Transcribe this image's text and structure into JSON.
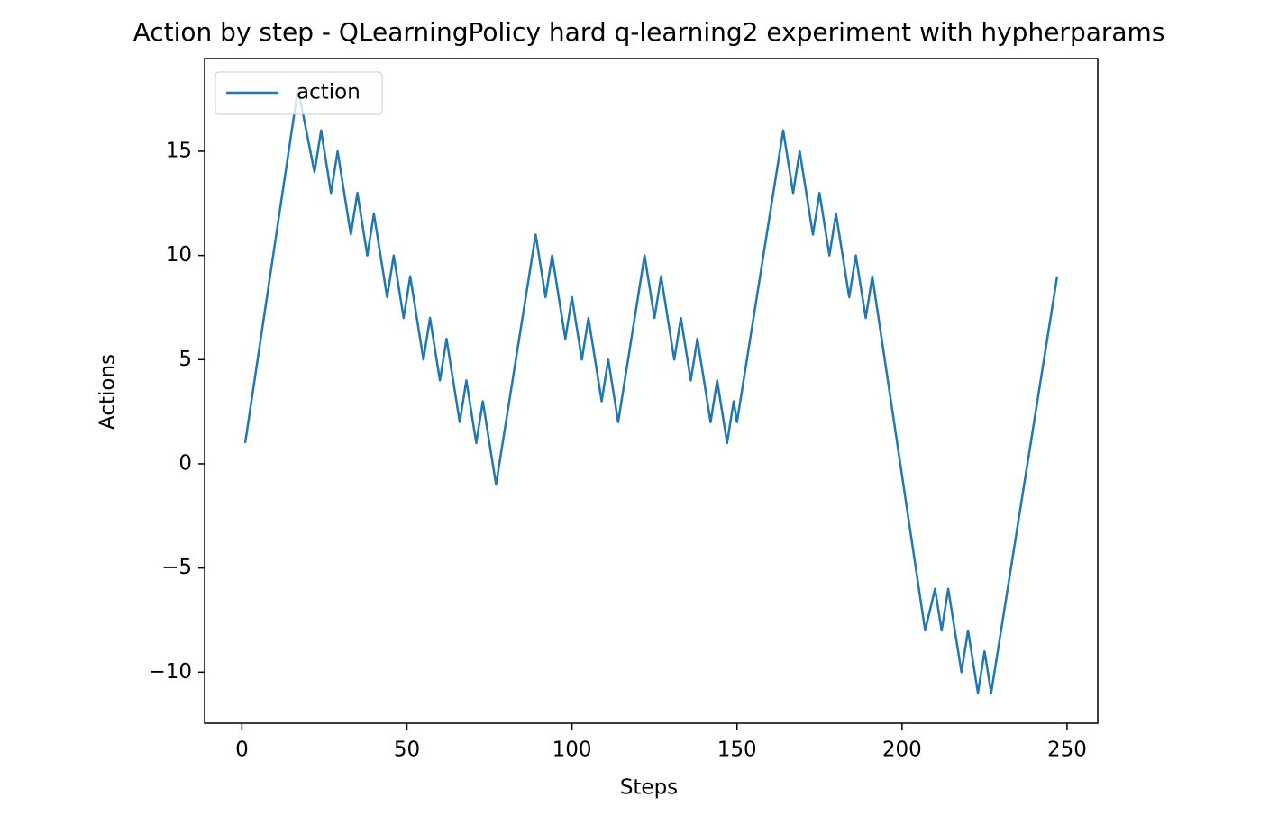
{
  "chart_data": {
    "type": "line",
    "title": "Action by step - QLearningPolicy hard q-learning2 experiment with hypherparams",
    "x_label": "Steps",
    "y_label": "Actions",
    "x": [
      1,
      17,
      22,
      24,
      27,
      29,
      33,
      35,
      38,
      40,
      44,
      46,
      49,
      51,
      55,
      57,
      60,
      62,
      66,
      68,
      71,
      73,
      77,
      89,
      92,
      94,
      98,
      100,
      103,
      105,
      109,
      111,
      114,
      122,
      125,
      127,
      131,
      133,
      136,
      138,
      142,
      144,
      147,
      149,
      150,
      164,
      167,
      169,
      173,
      175,
      178,
      180,
      184,
      186,
      189,
      191,
      207,
      210,
      212,
      214,
      218,
      220,
      223,
      225,
      227,
      247
    ],
    "series": [
      {
        "name": "action",
        "color": "#1f77b4",
        "values": [
          1,
          18,
          14,
          16,
          13,
          15,
          11,
          13,
          10,
          12,
          8,
          10,
          7,
          9,
          5,
          7,
          4,
          6,
          2,
          4,
          1,
          3,
          -1,
          11,
          8,
          10,
          6,
          8,
          5,
          7,
          3,
          5,
          2,
          10,
          7,
          9,
          5,
          7,
          4,
          6,
          2,
          4,
          1,
          3,
          2,
          16,
          13,
          15,
          11,
          13,
          10,
          12,
          8,
          10,
          7,
          9,
          -8,
          -6,
          -8,
          -6,
          -10,
          -8,
          -11,
          -9,
          -11,
          9
        ]
      }
    ],
    "xlim": [
      -11.3,
      259.3
    ],
    "ylim": [
      -12.45,
      19.45
    ],
    "xticks": [
      0,
      50,
      100,
      150,
      200,
      250
    ],
    "yticks": [
      {
        "value": -10,
        "label": "−10"
      },
      {
        "value": -5,
        "label": "−5"
      },
      0,
      5,
      10,
      15
    ],
    "legend": "upper left"
  }
}
